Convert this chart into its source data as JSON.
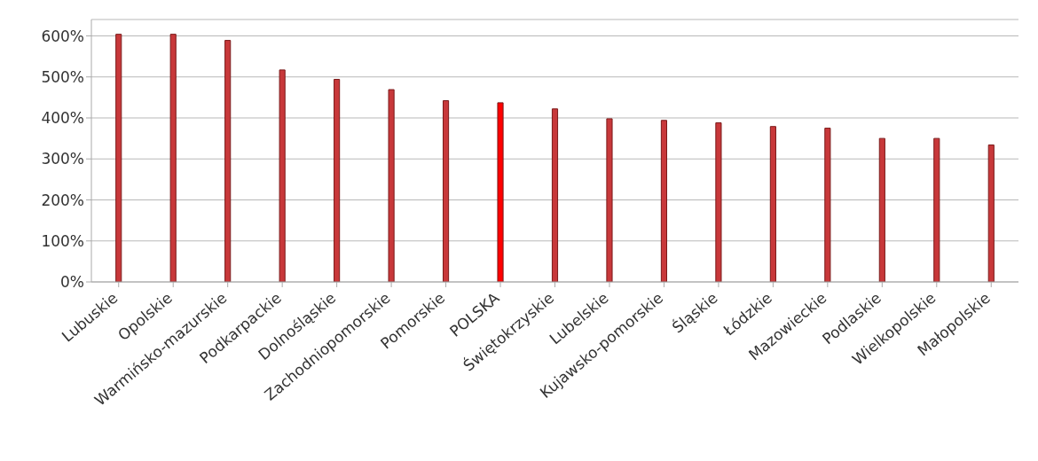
{
  "chart_data": {
    "type": "bar",
    "categories": [
      "Lubuskie",
      "Opolskie",
      "Warmińsko-mazurskie",
      "Podkarpackie",
      "Dolnośląskie",
      "Zachodniopomorskie",
      "Pomorskie",
      "POLSKA",
      "Świętokrzyskie",
      "Lubelskie",
      "Kujawsko-pomorskie",
      "Śląskie",
      "Łódzkie",
      "Mazowieckie",
      "Podlaskie",
      "Wielkopolskie",
      "Małopolskie"
    ],
    "values": [
      604,
      604,
      589,
      517,
      494,
      469,
      442,
      437,
      422,
      398,
      394,
      388,
      379,
      375,
      350,
      350,
      334
    ],
    "colors": [
      "#c8383a",
      "#c8383a",
      "#c8383a",
      "#c8383a",
      "#c8383a",
      "#c8383a",
      "#c8383a",
      "#ff0000",
      "#c8383a",
      "#c8383a",
      "#c8383a",
      "#c8383a",
      "#c8383a",
      "#c8383a",
      "#c8383a",
      "#c8383a",
      "#c8383a"
    ],
    "ylim": [
      0,
      640
    ],
    "yticks": [
      {
        "value": 0,
        "label": "0%"
      },
      {
        "value": 100,
        "label": "100%"
      },
      {
        "value": 200,
        "label": "200%"
      },
      {
        "value": 300,
        "label": "300%"
      },
      {
        "value": 400,
        "label": "400%"
      },
      {
        "value": 500,
        "label": "500%"
      },
      {
        "value": 600,
        "label": "600%"
      }
    ],
    "grid": "y",
    "legend": false
  }
}
